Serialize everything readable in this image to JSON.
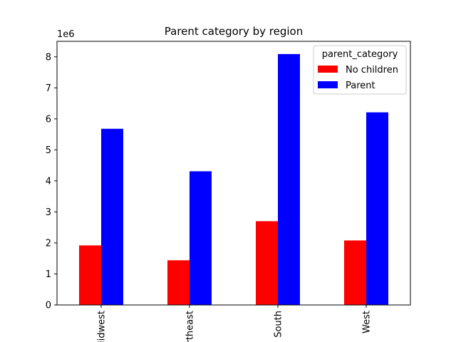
{
  "chart_data": {
    "type": "bar",
    "title": "Parent category by region",
    "xlabel": "",
    "ylabel": "",
    "y_offset_label": "1e6",
    "categories": [
      "Midwest",
      "Northeast",
      "South",
      "West"
    ],
    "series": [
      {
        "name": "No children",
        "color": "#ff0000",
        "values": [
          1920000,
          1440000,
          2700000,
          2080000
        ]
      },
      {
        "name": "Parent",
        "color": "#0000ff",
        "values": [
          5680000,
          4310000,
          8090000,
          6210000
        ]
      }
    ],
    "ylim": [
      0,
      8500000
    ],
    "yticks": [
      0,
      1000000,
      2000000,
      3000000,
      4000000,
      5000000,
      6000000,
      7000000,
      8000000
    ],
    "ytick_labels": [
      "0",
      "1",
      "2",
      "3",
      "4",
      "5",
      "6",
      "7",
      "8"
    ],
    "xtick_rotation": 90,
    "grid": false,
    "legend": {
      "title": "parent_category",
      "placement": "top-right"
    }
  }
}
